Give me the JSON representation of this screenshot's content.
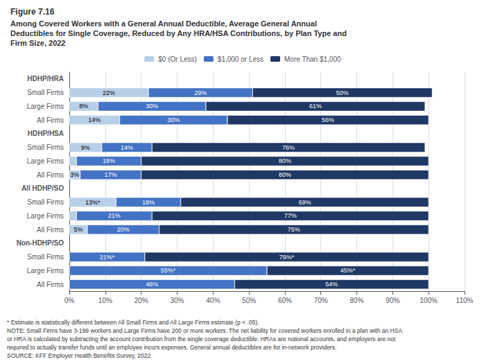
{
  "chart_data": {
    "type": "bar",
    "orientation": "horizontal",
    "stacked": true,
    "title": "Figure 7.16",
    "subtitle": "Among Covered Workers with a General Annual Deductible, Average General Annual\nDeductibles for Single Coverage, Reduced by Any HRA/HSA Contributions, by Plan Type and\nFirm Size, 2022",
    "categories": [
      "HDHP/HRA",
      "Small Firms",
      "Large Firms",
      "All Firms",
      "HDHP/HSA",
      "Small Firms",
      "Large Firms",
      "All Firms",
      "All HDHP/SO",
      "Small Firms",
      "Large Firms",
      "All Firms",
      "Non-HDHP/SO",
      "Small Firms",
      "Large Firms",
      "All Firms"
    ],
    "series": [
      {
        "name": "$0 (Or Less)",
        "color": "#b8cfe8",
        "values": [
          null,
          22,
          8,
          14,
          null,
          9,
          2,
          3,
          null,
          13,
          2,
          5,
          null,
          0,
          0,
          0
        ],
        "value_labels": [
          null,
          "22%",
          "8%",
          "14%",
          null,
          "9%",
          null,
          "3%",
          null,
          "13%*",
          null,
          "5%",
          null,
          null,
          null,
          null
        ]
      },
      {
        "name": "$1,000 or Less",
        "color": "#4472c4",
        "values": [
          null,
          29,
          30,
          30,
          null,
          14,
          18,
          17,
          null,
          18,
          21,
          20,
          null,
          21,
          55,
          46
        ],
        "value_labels": [
          null,
          "29%",
          "30%",
          "30%",
          null,
          "14%",
          "18%",
          "17%",
          null,
          "18%",
          "21%",
          "20%",
          null,
          "21%*",
          "55%*",
          "46%"
        ]
      },
      {
        "name": "More Than $1,000",
        "color": "#1f3864",
        "values": [
          null,
          50,
          61,
          56,
          null,
          76,
          80,
          80,
          null,
          69,
          77,
          75,
          null,
          79,
          45,
          54
        ],
        "value_labels": [
          null,
          "50%",
          "61%",
          "56%",
          null,
          "76%",
          "80%",
          "80%",
          null,
          "69%",
          "77%",
          "75%",
          null,
          "79%*",
          "45%*",
          "54%"
        ]
      }
    ],
    "xlim": [
      0,
      110
    ],
    "xticks": [
      {
        "value": 0,
        "label": "0%"
      },
      {
        "value": 10,
        "label": "10%"
      },
      {
        "value": 20,
        "label": "20%"
      },
      {
        "value": 30,
        "label": "30%"
      },
      {
        "value": 40,
        "label": "40%"
      },
      {
        "value": 50,
        "label": "50%"
      },
      {
        "value": 60,
        "label": "60%"
      },
      {
        "value": 70,
        "label": "70%"
      },
      {
        "value": 80,
        "label": "80%"
      },
      {
        "value": 90,
        "label": "90%"
      },
      {
        "value": 100,
        "label": "100%"
      },
      {
        "value": 110,
        "label": "110%"
      }
    ],
    "grid": true,
    "legend": "top",
    "data_labels": true,
    "annotations": [
      "* Estimate is statistically different between All Small Firms and All Large Firms estimate (p < .05).",
      "NOTE: Small Firms have 3-199 workers and Large Firms have 200 or more workers. The net liability for covered workers enrolled in a plan with an HSA",
      "or HRA is calculated by subtracting the account contribution from the single coverage deductible. HRAs are notional accounts, and employers are not",
      "required to actually transfer funds until an employee incurs expenses. General annual deductibles are for in-network providers.",
      "SOURCE: KFF Employer Health Benefits Survey, 2022"
    ]
  }
}
